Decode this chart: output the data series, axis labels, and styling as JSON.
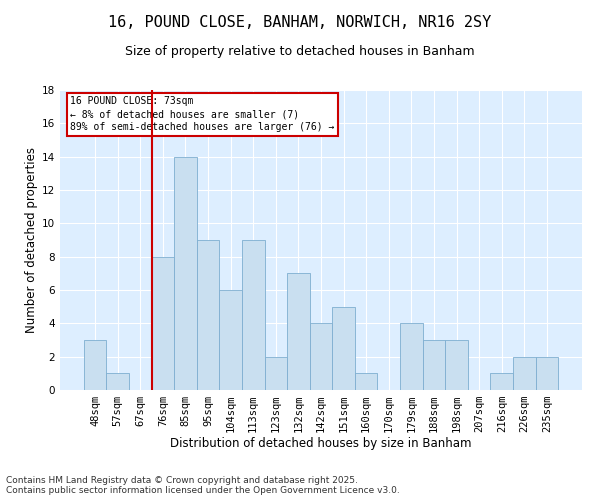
{
  "title": "16, POUND CLOSE, BANHAM, NORWICH, NR16 2SY",
  "subtitle": "Size of property relative to detached houses in Banham",
  "xlabel": "Distribution of detached houses by size in Banham",
  "ylabel": "Number of detached properties",
  "categories": [
    "48sqm",
    "57sqm",
    "67sqm",
    "76sqm",
    "85sqm",
    "95sqm",
    "104sqm",
    "113sqm",
    "123sqm",
    "132sqm",
    "142sqm",
    "151sqm",
    "160sqm",
    "170sqm",
    "179sqm",
    "188sqm",
    "198sqm",
    "207sqm",
    "216sqm",
    "226sqm",
    "235sqm"
  ],
  "values": [
    3,
    1,
    0,
    8,
    14,
    9,
    6,
    9,
    2,
    7,
    4,
    5,
    1,
    0,
    4,
    3,
    3,
    0,
    1,
    2,
    2
  ],
  "bar_color": "#c9dff0",
  "bar_edge_color": "#7eaed0",
  "red_line_x": 2.5,
  "ylim": [
    0,
    18
  ],
  "yticks": [
    0,
    2,
    4,
    6,
    8,
    10,
    12,
    14,
    16,
    18
  ],
  "annotation_title": "16 POUND CLOSE: 73sqm",
  "annotation_line1": "← 8% of detached houses are smaller (7)",
  "annotation_line2": "89% of semi-detached houses are larger (76) →",
  "annotation_box_color": "#ffffff",
  "annotation_box_edge": "#cc0000",
  "footer_line1": "Contains HM Land Registry data © Crown copyright and database right 2025.",
  "footer_line2": "Contains public sector information licensed under the Open Government Licence v3.0.",
  "fig_background_color": "#ffffff",
  "plot_background_color": "#ddeeff",
  "grid_color": "#ffffff",
  "title_fontsize": 11,
  "subtitle_fontsize": 9,
  "axis_label_fontsize": 8.5,
  "tick_fontsize": 7.5,
  "footer_fontsize": 6.5,
  "annotation_fontsize": 7
}
